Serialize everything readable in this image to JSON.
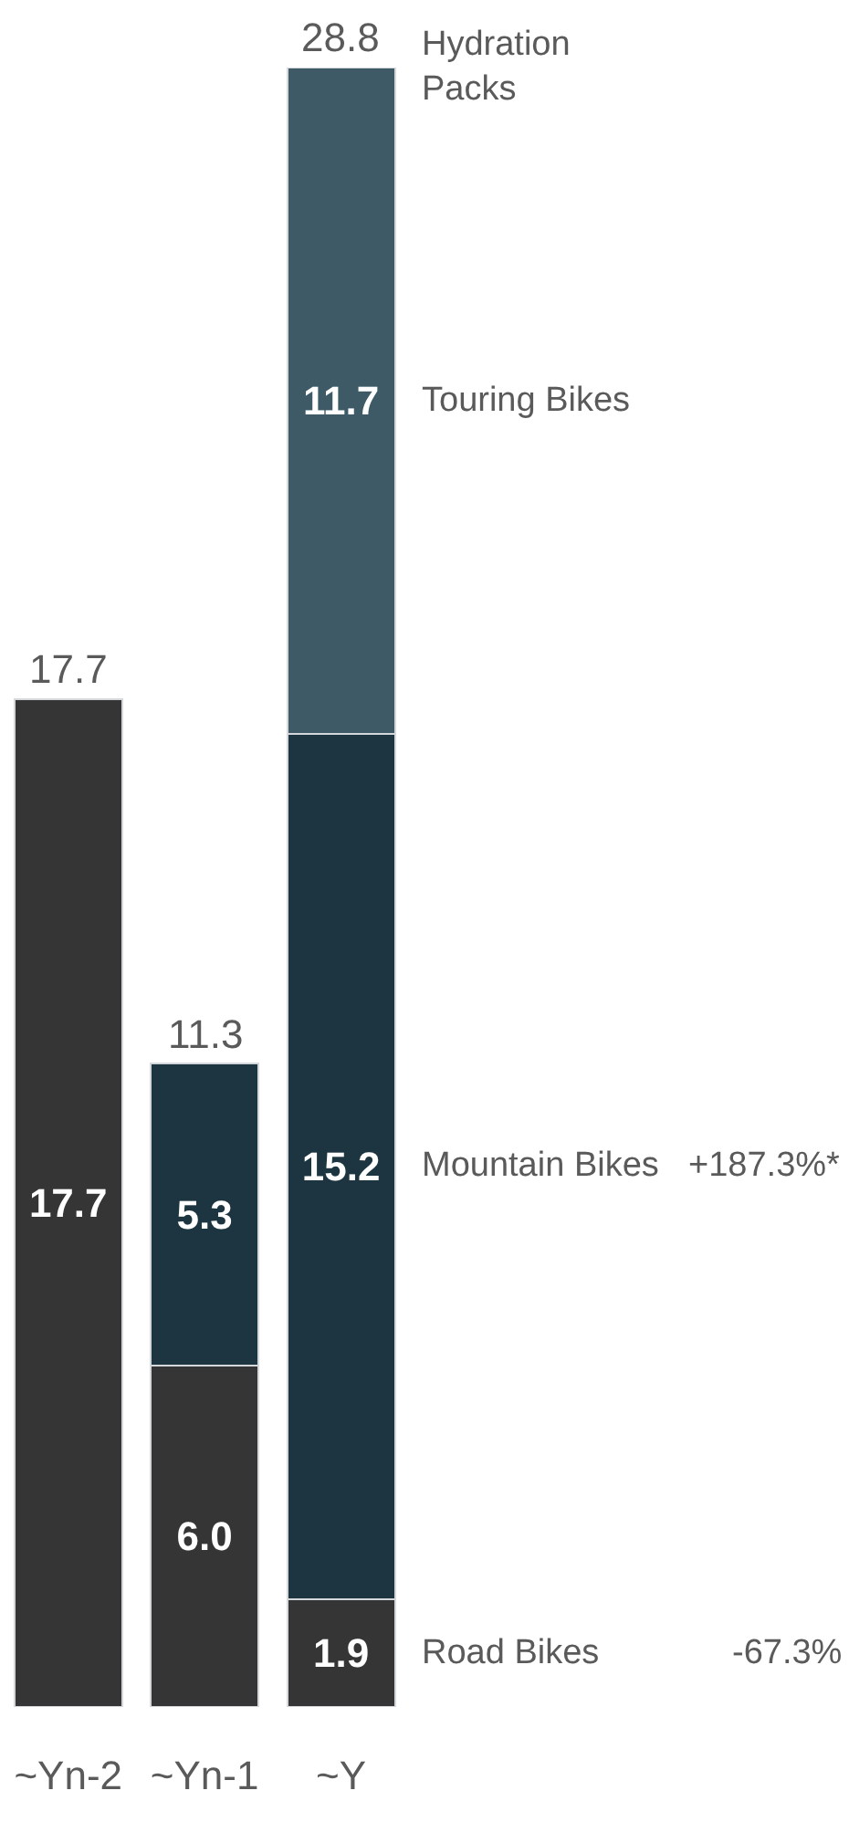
{
  "chart_data": {
    "type": "bar",
    "stacked": true,
    "categories": [
      "~Yn-2",
      "~Yn-1",
      "~Y"
    ],
    "series": [
      {
        "name": "Road Bikes",
        "color": "#353535",
        "values": [
          17.7,
          6.0,
          1.9
        ],
        "value_labels": [
          "17.7",
          "6.0",
          "1.9"
        ]
      },
      {
        "name": "Mountain Bikes",
        "color": "#1d3540",
        "values": [
          null,
          5.3,
          15.2
        ],
        "value_labels": [
          null,
          "5.3",
          "15.2"
        ]
      },
      {
        "name": "Touring Bikes",
        "color": "#3d5a66",
        "values": [
          null,
          null,
          11.7
        ],
        "value_labels": [
          null,
          null,
          "11.7"
        ]
      },
      {
        "name": "Hydration Packs",
        "values": [
          null,
          null,
          0
        ]
      }
    ],
    "totals": [
      "17.7",
      "11.3",
      "28.8"
    ],
    "annotations": [
      "+187.3%*",
      "-67.3%"
    ],
    "legend": false
  }
}
